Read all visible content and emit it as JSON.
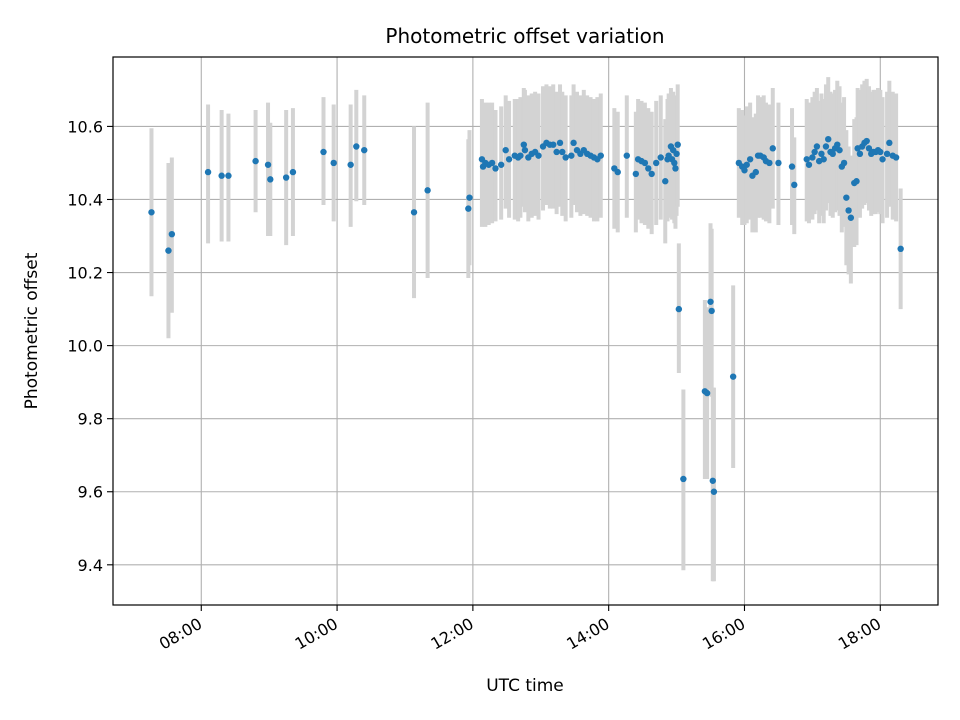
{
  "chart_data": {
    "type": "scatter",
    "title": "Photometric offset variation",
    "xlabel": "UTC time",
    "ylabel": "Photometric offset",
    "x_ticks": [
      "08:00",
      "10:00",
      "12:00",
      "14:00",
      "16:00",
      "18:00"
    ],
    "x_tick_hours": [
      8,
      10,
      12,
      14,
      16,
      18
    ],
    "xlim_hours": [
      6.7,
      18.85
    ],
    "y_ticks": [
      "9.4",
      "9.6",
      "9.8",
      "10.0",
      "10.2",
      "10.4",
      "10.6"
    ],
    "ylim": [
      9.29,
      10.79
    ],
    "grid": true,
    "colors": {
      "points": "#1f77b4",
      "errorbars": "#d3d3d3",
      "grid": "#b0b0b0"
    },
    "series": [
      {
        "x": [
          "07:16",
          "07:31",
          "07:34",
          "08:06",
          "08:18",
          "08:24",
          "08:48",
          "08:59",
          "09:01",
          "09:15",
          "09:21",
          "09:48",
          "09:57",
          "10:12",
          "10:17",
          "10:24",
          "11:08",
          "11:20",
          "11:56",
          "11:57",
          "12:08",
          "12:09",
          "12:11",
          "12:14",
          "12:17",
          "12:20",
          "12:25",
          "12:29",
          "12:32",
          "12:37",
          "12:40",
          "12:42",
          "12:45",
          "12:46",
          "12:49",
          "12:52",
          "12:55",
          "12:58",
          "13:02",
          "13:05",
          "13:08",
          "13:11",
          "13:14",
          "13:17",
          "13:19",
          "13:22",
          "13:27",
          "13:29",
          "13:32",
          "13:35",
          "13:38",
          "13:41",
          "13:44",
          "13:47",
          "13:50",
          "13:53",
          "14:05",
          "14:08",
          "14:16",
          "14:24",
          "14:26",
          "14:29",
          "14:32",
          "14:35",
          "14:38",
          "14:42",
          "14:46",
          "14:50",
          "14:52",
          "14:53",
          "14:55",
          "14:56",
          "14:57",
          "14:58",
          "14:59",
          "15:00",
          "15:01",
          "15:02",
          "15:06",
          "15:25",
          "15:27",
          "15:30",
          "15:31",
          "15:32",
          "15:33",
          "15:50",
          "15:55",
          "15:58",
          "16:00",
          "16:02",
          "16:05",
          "16:07",
          "16:10",
          "16:12",
          "16:14",
          "16:17",
          "16:19",
          "16:22",
          "16:25",
          "16:30",
          "16:42",
          "16:44",
          "16:55",
          "16:57",
          "17:00",
          "17:02",
          "17:04",
          "17:06",
          "17:08",
          "17:10",
          "17:12",
          "17:14",
          "17:16",
          "17:18",
          "17:20",
          "17:22",
          "17:24",
          "17:26",
          "17:28",
          "17:30",
          "17:32",
          "17:34",
          "17:37",
          "17:39",
          "17:40",
          "17:42",
          "17:44",
          "17:46",
          "17:48",
          "17:50",
          "17:52",
          "17:54",
          "17:56",
          "17:58",
          "18:00",
          "18:02",
          "18:06",
          "18:08",
          "18:11",
          "18:14",
          "18:18"
        ],
        "y": [
          10.365,
          10.26,
          10.305,
          10.475,
          10.465,
          10.465,
          10.505,
          10.495,
          10.455,
          10.46,
          10.475,
          10.53,
          10.5,
          10.495,
          10.545,
          10.535,
          10.365,
          10.425,
          10.375,
          10.405,
          10.51,
          10.49,
          10.5,
          10.495,
          10.5,
          10.485,
          10.495,
          10.535,
          10.51,
          10.52,
          10.515,
          10.52,
          10.55,
          10.535,
          10.515,
          10.525,
          10.53,
          10.52,
          10.545,
          10.555,
          10.55,
          10.55,
          10.53,
          10.555,
          10.53,
          10.515,
          10.52,
          10.555,
          10.535,
          10.525,
          10.535,
          10.525,
          10.52,
          10.515,
          10.51,
          10.52,
          10.485,
          10.475,
          10.52,
          10.47,
          10.51,
          10.505,
          10.5,
          10.485,
          10.47,
          10.5,
          10.515,
          10.45,
          10.51,
          10.52,
          10.545,
          10.51,
          10.535,
          10.5,
          10.485,
          10.525,
          10.55,
          10.1,
          9.635,
          9.875,
          9.87,
          10.12,
          10.095,
          9.63,
          9.6,
          9.915,
          10.5,
          10.49,
          10.48,
          10.495,
          10.51,
          10.465,
          10.475,
          10.52,
          10.52,
          10.515,
          10.505,
          10.5,
          10.54,
          10.5,
          10.49,
          10.44,
          10.51,
          10.495,
          10.515,
          10.53,
          10.545,
          10.505,
          10.525,
          10.51,
          10.545,
          10.565,
          10.53,
          10.525,
          10.54,
          10.55,
          10.535,
          10.49,
          10.5,
          10.405,
          10.37,
          10.35,
          10.445,
          10.45,
          10.54,
          10.525,
          10.545,
          10.555,
          10.56,
          10.54,
          10.525,
          10.53,
          10.53,
          10.535,
          10.53,
          10.51,
          10.525,
          10.555,
          10.52,
          10.515,
          10.265
        ],
        "err_low": [
          10.135,
          10.02,
          10.09,
          10.28,
          10.285,
          10.285,
          10.365,
          10.3,
          10.3,
          10.275,
          10.3,
          10.385,
          10.34,
          10.325,
          10.395,
          10.385,
          10.13,
          10.185,
          10.185,
          10.22,
          10.325,
          10.33,
          10.325,
          10.33,
          10.335,
          10.34,
          10.345,
          10.375,
          10.35,
          10.345,
          10.34,
          10.35,
          10.38,
          10.365,
          10.34,
          10.35,
          10.355,
          10.345,
          10.37,
          10.385,
          10.375,
          10.375,
          10.36,
          10.38,
          10.355,
          10.34,
          10.35,
          10.385,
          10.365,
          10.355,
          10.36,
          10.355,
          10.35,
          10.34,
          10.34,
          10.35,
          10.32,
          10.31,
          10.35,
          10.31,
          10.345,
          10.335,
          10.33,
          10.32,
          10.305,
          10.33,
          10.345,
          10.28,
          10.34,
          10.35,
          10.375,
          10.345,
          10.37,
          10.335,
          10.32,
          10.355,
          10.38,
          9.925,
          9.385,
          9.635,
          9.635,
          9.88,
          9.86,
          9.355,
          9.355,
          9.665,
          10.35,
          10.33,
          10.33,
          10.335,
          10.345,
          10.31,
          10.31,
          10.35,
          10.35,
          10.345,
          10.34,
          10.335,
          10.375,
          10.33,
          10.33,
          10.305,
          10.34,
          10.335,
          10.345,
          10.36,
          10.37,
          10.335,
          10.355,
          10.335,
          10.37,
          10.39,
          10.355,
          10.35,
          10.365,
          10.37,
          10.355,
          10.31,
          10.325,
          10.22,
          10.195,
          10.17,
          10.27,
          10.275,
          10.37,
          10.35,
          10.375,
          10.385,
          10.39,
          10.37,
          10.355,
          10.36,
          10.36,
          10.365,
          10.36,
          10.335,
          10.35,
          10.38,
          10.345,
          10.34,
          10.1
        ],
        "err_high": [
          10.595,
          10.5,
          10.515,
          10.66,
          10.645,
          10.635,
          10.645,
          10.665,
          10.61,
          10.645,
          10.65,
          10.68,
          10.66,
          10.66,
          10.7,
          10.685,
          10.6,
          10.665,
          10.565,
          10.59,
          10.675,
          10.655,
          10.665,
          10.665,
          10.665,
          10.645,
          10.655,
          10.685,
          10.67,
          10.675,
          10.675,
          10.68,
          10.705,
          10.7,
          10.685,
          10.69,
          10.695,
          10.69,
          10.71,
          10.715,
          10.71,
          10.715,
          10.695,
          10.715,
          10.695,
          10.685,
          10.685,
          10.715,
          10.695,
          10.685,
          10.7,
          10.685,
          10.68,
          10.675,
          10.68,
          10.69,
          10.65,
          10.64,
          10.685,
          10.64,
          10.675,
          10.67,
          10.665,
          10.65,
          10.64,
          10.67,
          10.685,
          10.62,
          10.675,
          10.69,
          10.705,
          10.675,
          10.695,
          10.66,
          10.645,
          10.685,
          10.715,
          10.28,
          9.88,
          10.125,
          10.105,
          10.335,
          10.32,
          9.885,
          9.885,
          10.165,
          10.65,
          10.645,
          10.63,
          10.655,
          10.665,
          10.625,
          10.635,
          10.685,
          10.68,
          10.685,
          10.665,
          10.66,
          10.705,
          10.665,
          10.65,
          10.57,
          10.675,
          10.665,
          10.68,
          10.695,
          10.705,
          10.67,
          10.69,
          10.675,
          10.715,
          10.735,
          10.695,
          10.69,
          10.7,
          10.725,
          10.71,
          10.665,
          10.68,
          10.59,
          10.545,
          10.52,
          10.62,
          10.625,
          10.705,
          10.7,
          10.715,
          10.725,
          10.73,
          10.71,
          10.695,
          10.7,
          10.7,
          10.705,
          10.7,
          10.68,
          10.695,
          10.725,
          10.695,
          10.69,
          10.43
        ]
      }
    ]
  }
}
